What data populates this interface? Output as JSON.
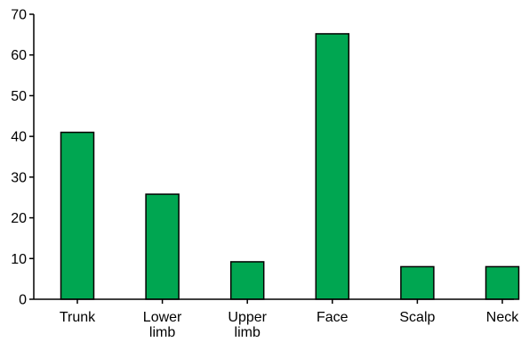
{
  "chart_data": {
    "type": "bar",
    "title": "",
    "xlabel": "",
    "ylabel": "",
    "categories": [
      "Trunk",
      "Lower limb",
      "Upper limb",
      "Face",
      "Scalp",
      "Neck"
    ],
    "category_lines": [
      [
        "Trunk"
      ],
      [
        "Lower",
        "limb"
      ],
      [
        "Upper",
        "limb"
      ],
      [
        "Face"
      ],
      [
        "Scalp"
      ],
      [
        "Neck"
      ]
    ],
    "values": [
      41,
      25.8,
      9.2,
      65.2,
      8,
      8
    ],
    "ylim": [
      0,
      70
    ],
    "yticks": [
      "0",
      "10",
      "20",
      "30",
      "40",
      "50",
      "60",
      "70"
    ],
    "grid": false,
    "legend": "none",
    "bar_color": "#00a651",
    "edge_color": "#000000"
  }
}
